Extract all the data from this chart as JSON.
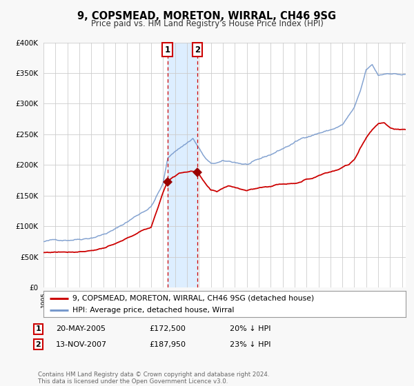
{
  "title": "9, COPSMEAD, MORETON, WIRRAL, CH46 9SG",
  "subtitle": "Price paid vs. HM Land Registry's House Price Index (HPI)",
  "ylim": [
    0,
    400000
  ],
  "yticks": [
    0,
    50000,
    100000,
    150000,
    200000,
    250000,
    300000,
    350000,
    400000
  ],
  "xlim_start": 1995.0,
  "xlim_end": 2025.3,
  "bg_color": "#f8f8f8",
  "plot_bg_color": "#ffffff",
  "grid_color": "#cccccc",
  "sale1_date_num": 2005.38,
  "sale1_price": 172500,
  "sale2_date_num": 2007.87,
  "sale2_price": 187950,
  "shade_color": "#ddeeff",
  "vline_color": "#cc0000",
  "marker_color": "#990000",
  "hpi_line_color": "#7799cc",
  "price_line_color": "#cc0000",
  "legend_label_price": "9, COPSMEAD, MORETON, WIRRAL, CH46 9SG (detached house)",
  "legend_label_hpi": "HPI: Average price, detached house, Wirral",
  "footer_text": "Contains HM Land Registry data © Crown copyright and database right 2024.\nThis data is licensed under the Open Government Licence v3.0.",
  "transaction_rows": [
    {
      "num": "1",
      "date": "20-MAY-2005",
      "price": "£172,500",
      "hpi": "20% ↓ HPI"
    },
    {
      "num": "2",
      "date": "13-NOV-2007",
      "price": "£187,950",
      "hpi": "23% ↓ HPI"
    }
  ]
}
